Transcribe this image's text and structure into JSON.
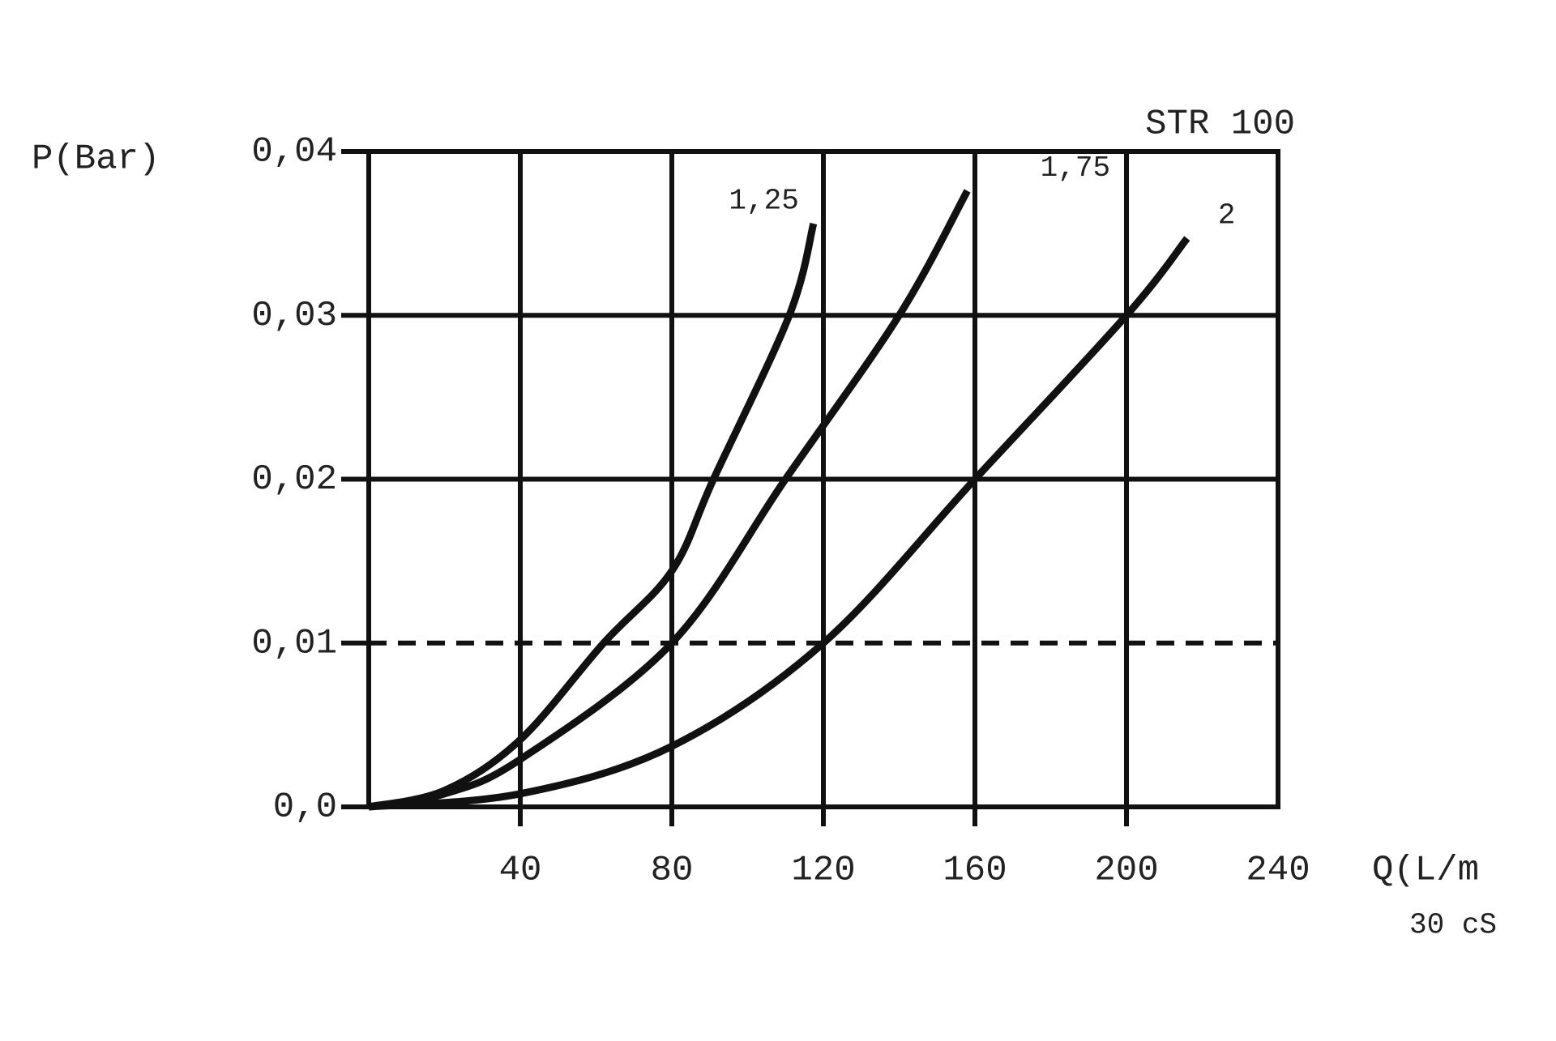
{
  "chart_data": {
    "type": "line",
    "title": "STR 100",
    "subtitle": "30 cS",
    "x_label": "Q(L/m",
    "y_label": "P(Bar)",
    "xlim": [
      0,
      240
    ],
    "ylim": [
      0,
      0.04
    ],
    "xticks": [
      40,
      80,
      120,
      160,
      200,
      240
    ],
    "yticks": [
      {
        "value": 0,
        "label": "0,0"
      },
      {
        "value": 0.01,
        "label": "0,01"
      },
      {
        "value": 0.02,
        "label": "0,02"
      },
      {
        "value": 0.03,
        "label": "0,03"
      },
      {
        "value": 0.04,
        "label": "0,04"
      }
    ],
    "grid": true,
    "dashed_line": 0.01,
    "series": [
      {
        "name": "1,25",
        "color": "#111111",
        "x": [
          0,
          20,
          40,
          62,
          80,
          91,
          111,
          117.4
        ],
        "values": [
          0,
          0.001,
          0.0041,
          0.01,
          0.0144,
          0.02,
          0.03,
          0.0356
        ]
      },
      {
        "name": "1,75",
        "color": "#111111",
        "x": [
          0,
          20,
          40,
          80,
          110,
          140,
          158
        ],
        "values": [
          0,
          0.0008,
          0.0029,
          0.01,
          0.02,
          0.03,
          0.0376
        ]
      },
      {
        "name": "2",
        "color": "#111111",
        "x": [
          0,
          40,
          80,
          120,
          160,
          200,
          216
        ],
        "values": [
          0,
          0.0008,
          0.0037,
          0.01,
          0.02,
          0.03,
          0.0347
        ]
      }
    ]
  }
}
